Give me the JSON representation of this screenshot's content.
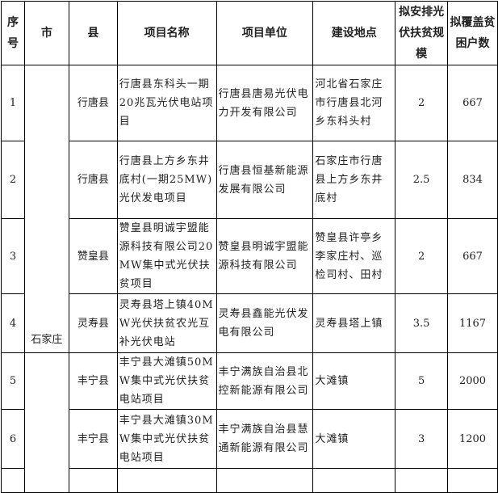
{
  "headers": [
    "序号",
    "市",
    "县",
    "项目名称",
    "项目单位",
    "建设地点",
    "拟安排光伏扶贫规模",
    "拟覆盖贫困户数"
  ],
  "city_groups": [
    {
      "city": "石家庄"
    },
    {
      "city": ""
    }
  ],
  "rows": [
    {
      "no": "1",
      "county": "行唐县",
      "name": "行唐县东科头一期20兆瓦光伏电站项目",
      "unit": "行唐县唐易光伏电力开发有限公司",
      "site": "河北省石家庄市行唐县北河乡东科头村",
      "scale": "2",
      "households": "667"
    },
    {
      "no": "2",
      "county": "行唐县",
      "name": "行唐县上方乡东井底村(一期25MW)光伏发电项目",
      "unit": "行唐县恒基新能源发展有限公司",
      "site": "石家庄市行唐县上方乡东井底村",
      "scale": "2.5",
      "households": "834"
    },
    {
      "no": "3",
      "county": "赞皇县",
      "name": "赞皇县明诚宇盟能源科技有限公司20MW集中式光伏扶贫项目",
      "unit": "赞皇县明诚宇盟能源科技有限公司",
      "site": "赞皇县许亭乡李家庄村、巡检司村、田村",
      "scale": "2",
      "households": "667"
    },
    {
      "no": "4",
      "county": "灵寿县",
      "name": "灵寿县塔上镇40MW光伏扶贫农光互补光伏电站",
      "unit": "灵寿县鑫能光伏发电有限公司",
      "site": "灵寿县塔上镇",
      "scale": "3.5",
      "households": "1167"
    },
    {
      "no": "5",
      "county": "丰宁县",
      "name": "丰宁县大滩镇50MW集中式光伏扶贫电站项目",
      "unit": "丰宁满族自治县北控新能源有限公司",
      "site": "大滩镇",
      "scale": "5",
      "households": "2000"
    },
    {
      "no": "6",
      "county": "丰宁县",
      "name": "丰宁县大滩镇30MW集中式光伏扶贫电站项目",
      "unit": "丰宁满族自治县慧通新能源有限公司",
      "site": "大滩镇",
      "scale": "3",
      "households": "1200"
    }
  ]
}
